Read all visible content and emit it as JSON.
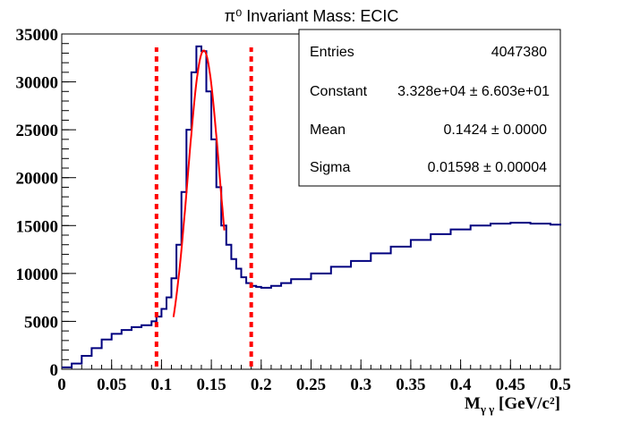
{
  "chart_data": {
    "type": "histogram",
    "title": "π⁰ Invariant Mass: ECIC",
    "xlabel": "M",
    "xlabel_sub": "γ γ",
    "xlabel_unit": " [GeV/c²]",
    "ylabel": "",
    "xlim": [
      0,
      0.5
    ],
    "ylim": [
      0,
      35000
    ],
    "xticks": [
      0,
      0.05,
      0.1,
      0.15,
      0.2,
      0.25,
      0.3,
      0.35,
      0.4,
      0.45,
      0.5
    ],
    "xtick_labels": [
      "0",
      "0.05",
      "0.1",
      "0.15",
      "0.2",
      "0.25",
      "0.3",
      "0.35",
      "0.4",
      "0.45",
      "0.5"
    ],
    "yticks": [
      0,
      5000,
      10000,
      15000,
      20000,
      25000,
      30000,
      35000
    ],
    "ytick_labels": [
      "0",
      "5000",
      "10000",
      "15000",
      "20000",
      "25000",
      "30000",
      "35000"
    ],
    "histogram_color": "#00007f",
    "fit_color": "#ff0000",
    "cut_line_color": "#ff0000",
    "histogram": {
      "x": [
        0,
        0.01,
        0.02,
        0.03,
        0.04,
        0.05,
        0.06,
        0.07,
        0.08,
        0.09,
        0.095,
        0.1,
        0.105,
        0.11,
        0.115,
        0.12,
        0.125,
        0.13,
        0.135,
        0.14,
        0.145,
        0.15,
        0.155,
        0.16,
        0.165,
        0.17,
        0.175,
        0.18,
        0.185,
        0.19,
        0.195,
        0.2,
        0.21,
        0.22,
        0.23,
        0.25,
        0.27,
        0.29,
        0.31,
        0.33,
        0.35,
        0.37,
        0.39,
        0.41,
        0.43,
        0.45,
        0.47,
        0.49,
        0.5
      ],
      "y": [
        200,
        600,
        1400,
        2200,
        3100,
        3700,
        4100,
        4400,
        4600,
        5000,
        5500,
        6300,
        7500,
        9500,
        13000,
        18500,
        25000,
        31000,
        33700,
        33200,
        29000,
        24000,
        19000,
        15000,
        13000,
        11500,
        10500,
        9600,
        9000,
        8700,
        8600,
        8500,
        8700,
        9000,
        9400,
        10000,
        10700,
        11300,
        12100,
        12800,
        13500,
        14100,
        14600,
        15000,
        15200,
        15300,
        15200,
        15100,
        15000
      ]
    },
    "fit": {
      "type": "gaussian",
      "constant": 33280,
      "mean": 0.1424,
      "sigma": 0.01598,
      "range": [
        0.112,
        0.163
      ]
    },
    "cut_lines_x": [
      0.095,
      0.19
    ],
    "stats_box": {
      "entries_label": "Entries",
      "entries_value": "4047380",
      "constant_label": "Constant",
      "constant_value": "3.328e+04 ± 6.603e+01",
      "mean_label": "Mean",
      "mean_value": "0.1424 ± 0.0000",
      "sigma_label": "Sigma",
      "sigma_value": "0.01598 ± 0.00004"
    }
  }
}
